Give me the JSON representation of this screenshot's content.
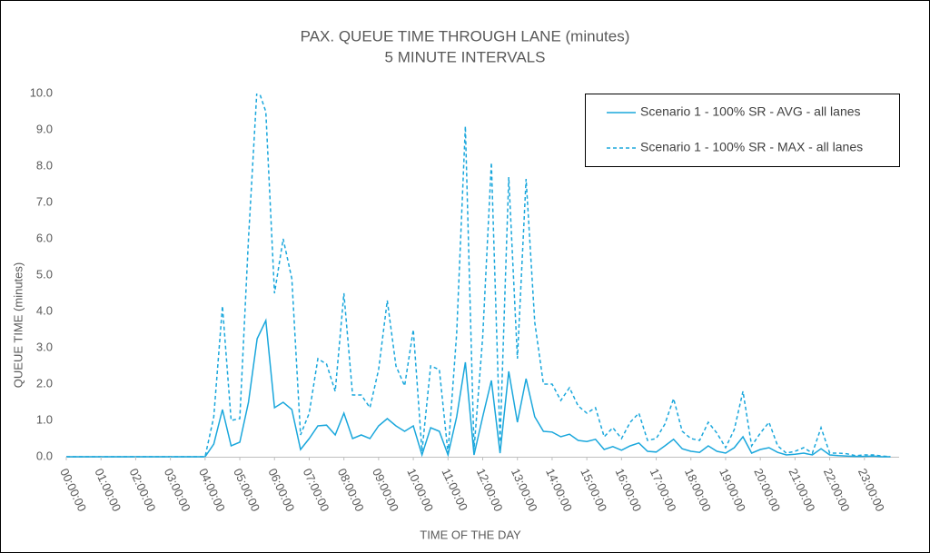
{
  "chart_data": {
    "type": "line",
    "title": "PAX. QUEUE TIME THROUGH LANE (minutes)",
    "subtitle": "5 MINUTE INTERVALS",
    "x_label": "TIME OF THE DAY",
    "y_label": "QUEUE TIME (minutes)",
    "categories": [
      "00:00:00",
      null,
      null,
      null,
      "01:00:00",
      null,
      null,
      null,
      "02:00:00",
      null,
      null,
      null,
      "03:00:00",
      null,
      null,
      null,
      "04:00:00",
      null,
      null,
      null,
      "05:00:00",
      null,
      null,
      null,
      "06:00:00",
      null,
      null,
      null,
      "07:00:00",
      null,
      null,
      null,
      "08:00:00",
      null,
      null,
      null,
      "09:00:00",
      null,
      null,
      null,
      "10:00:00",
      null,
      null,
      null,
      "11:00:00",
      null,
      null,
      null,
      "12:00:00",
      null,
      null,
      null,
      "13:00:00",
      null,
      null,
      null,
      "14:00:00",
      null,
      null,
      null,
      "15:00:00",
      null,
      null,
      null,
      "16:00:00",
      null,
      null,
      null,
      "17:00:00",
      null,
      null,
      null,
      "18:00:00",
      null,
      null,
      null,
      "19:00:00",
      null,
      null,
      null,
      "20:00:00",
      null,
      null,
      null,
      "21:00:00",
      null,
      null,
      null,
      "22:00:00",
      null,
      null,
      null,
      "23:00:00",
      null,
      null,
      null
    ],
    "series": [
      {
        "name": "Scenario 1 - 100% SR - AVG - all lanes",
        "color": "#1aa7dc",
        "dash": false,
        "values": [
          0,
          0,
          0,
          0,
          0,
          0,
          0,
          0,
          0,
          0,
          0,
          0,
          0,
          0,
          0,
          0,
          0,
          0.35,
          1.3,
          0.3,
          0.4,
          1.5,
          3.25,
          3.75,
          1.35,
          1.5,
          1.3,
          0.2,
          0.5,
          0.85,
          0.87,
          0.6,
          1.2,
          0.5,
          0.6,
          0.5,
          0.85,
          1.05,
          0.85,
          0.7,
          0.85,
          0.05,
          0.8,
          0.7,
          0.05,
          1.1,
          2.6,
          0.05,
          1.1,
          2.1,
          0.1,
          2.35,
          0.95,
          2.15,
          1.1,
          0.7,
          0.68,
          0.55,
          0.62,
          0.45,
          0.42,
          0.48,
          0.2,
          0.28,
          0.18,
          0.3,
          0.38,
          0.15,
          0.13,
          0.3,
          0.48,
          0.22,
          0.15,
          0.12,
          0.3,
          0.15,
          0.1,
          0.25,
          0.55,
          0.1,
          0.2,
          0.25,
          0.12,
          0.05,
          0.07,
          0.1,
          0.05,
          0.22,
          0.05,
          0.03,
          0.02,
          0.01,
          0.01,
          0.02,
          0,
          0
        ]
      },
      {
        "name": "Scenario 1 - 100% SR - MAX - all lanes",
        "color": "#1aa7dc",
        "dash": true,
        "values": [
          0,
          0,
          0,
          0,
          0,
          0,
          0,
          0,
          0,
          0,
          0,
          0,
          0,
          0,
          0,
          0,
          0,
          1.1,
          4.15,
          1.0,
          1.05,
          6.0,
          10.2,
          9.5,
          4.5,
          6.0,
          4.9,
          0.6,
          1.2,
          2.7,
          2.55,
          1.8,
          4.5,
          1.7,
          1.7,
          1.35,
          2.4,
          4.3,
          2.5,
          1.95,
          3.5,
          0.15,
          2.5,
          2.4,
          0.1,
          3.4,
          9.1,
          0.2,
          3.3,
          8.1,
          0.4,
          7.7,
          2.7,
          7.65,
          3.7,
          2.0,
          2.0,
          1.55,
          1.9,
          1.4,
          1.2,
          1.35,
          0.55,
          0.8,
          0.5,
          0.95,
          1.2,
          0.45,
          0.5,
          0.9,
          1.6,
          0.7,
          0.5,
          0.45,
          0.95,
          0.65,
          0.25,
          0.75,
          1.8,
          0.3,
          0.65,
          0.95,
          0.3,
          0.1,
          0.15,
          0.25,
          0.1,
          0.8,
          0.1,
          0.1,
          0.08,
          0.03,
          0.05,
          0.05,
          0.02,
          0
        ]
      }
    ],
    "ylim": [
      0,
      10
    ],
    "yticks": [
      {
        "value": 0,
        "label": "0.0"
      },
      {
        "value": 1,
        "label": "1.0"
      },
      {
        "value": 2,
        "label": "2.0"
      },
      {
        "value": 3,
        "label": "3.0"
      },
      {
        "value": 4,
        "label": "4.0"
      },
      {
        "value": 5,
        "label": "5.0"
      },
      {
        "value": 6,
        "label": "6.0"
      },
      {
        "value": 7,
        "label": "7.0"
      },
      {
        "value": 8,
        "label": "8.0"
      },
      {
        "value": 9,
        "label": "9.0"
      },
      {
        "value": 10,
        "label": "10.0"
      }
    ],
    "grid": false,
    "legend": "top-right"
  }
}
